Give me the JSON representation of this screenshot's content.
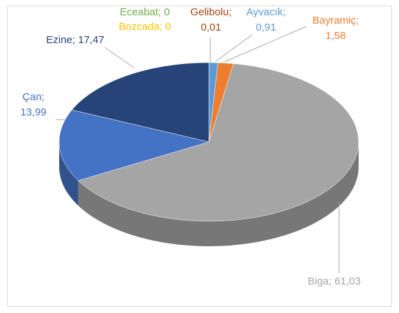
{
  "chart_data": {
    "type": "pie3d",
    "label_separator": "; ",
    "categories": [
      "Eceabat",
      "Bozcada",
      "Gelibolu",
      "Ayvacık",
      "Bayramiç",
      "Biga",
      "Çan",
      "Ezine"
    ],
    "values": [
      0,
      0,
      0.01,
      0.91,
      1.58,
      61.03,
      13.99,
      17.47
    ],
    "value_labels": [
      "0",
      "0",
      "0,01",
      "0,91",
      "1,58",
      "61,03",
      "13,99",
      "17,47"
    ],
    "colors": [
      "#70ad47",
      "#ffc000",
      "#9e480e",
      "#5b9bd5",
      "#ed7d31",
      "#a5a5a5",
      "#4472c4",
      "#264478"
    ]
  }
}
